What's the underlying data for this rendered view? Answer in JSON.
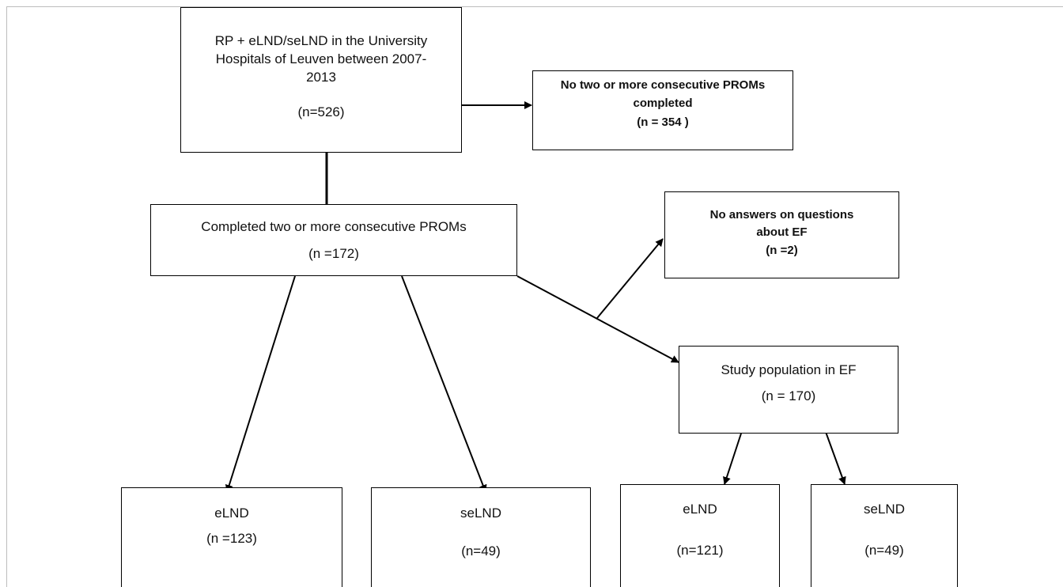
{
  "boxes": {
    "start": {
      "lines": [
        "RP + eLND/seLND in the University",
        "Hospitals of Leuven between 2007-",
        "2013"
      ],
      "count": "(n=526)"
    },
    "excluded_proms": {
      "lines": [
        "No two or more consecutive PROMs",
        "completed"
      ],
      "count": "(n = 354 )"
    },
    "completed": {
      "lines": [
        "Completed two or more consecutive PROMs"
      ],
      "count": "(n =172)"
    },
    "excluded_ef": {
      "lines": [
        "No answers on questions",
        "about EF"
      ],
      "count": "(n =2)"
    },
    "study_ef": {
      "lines": [
        "Study population in EF"
      ],
      "count": "(n = 170)"
    },
    "elnd_all": {
      "label": "eLND",
      "count": "(n =123)"
    },
    "selnd_all": {
      "label": "seLND",
      "count": "(n=49)"
    },
    "elnd_ef": {
      "label": "eLND",
      "count": "(n=121)"
    },
    "selnd_ef": {
      "label": "seLND",
      "count": "(n=49)"
    }
  }
}
